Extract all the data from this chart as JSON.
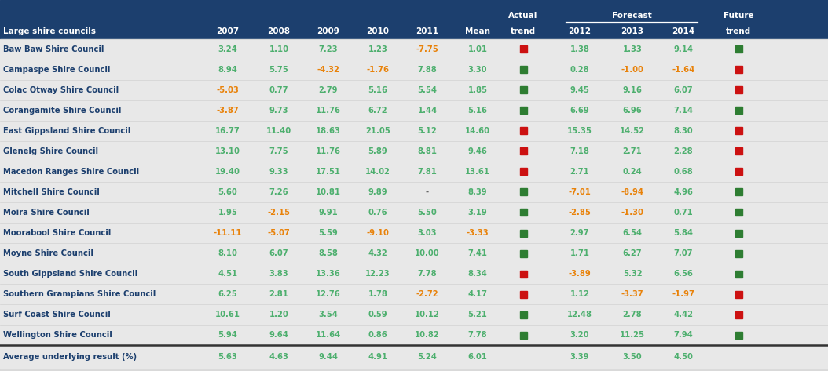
{
  "header_bg": "#1c3f6e",
  "header_fg": "#ffffff",
  "bg_color": "#d9d9d9",
  "row_bg": "#e8e8e8",
  "name_color": "#1c3f6e",
  "pos_color": "#4daf6e",
  "neg_color": "#e8820a",
  "avg_pos_color": "#4daf6e",
  "rows": [
    {
      "name": "Baw Baw Shire Council",
      "2007": "3.24",
      "2008": "1.10",
      "2009": "7.23",
      "2010": "1.23",
      "2011": "-7.75",
      "mean": "1.01",
      "actual_trend": "red",
      "2012": "1.38",
      "2013": "1.33",
      "2014": "9.14",
      "future_trend": "green"
    },
    {
      "name": "Campaspe Shire Council",
      "2007": "8.94",
      "2008": "5.75",
      "2009": "-4.32",
      "2010": "-1.76",
      "2011": "7.88",
      "mean": "3.30",
      "actual_trend": "green",
      "2012": "0.28",
      "2013": "-1.00",
      "2014": "-1.64",
      "future_trend": "red"
    },
    {
      "name": "Colac Otway Shire Council",
      "2007": "-5.03",
      "2008": "0.77",
      "2009": "2.79",
      "2010": "5.16",
      "2011": "5.54",
      "mean": "1.85",
      "actual_trend": "green",
      "2012": "9.45",
      "2013": "9.16",
      "2014": "6.07",
      "future_trend": "red"
    },
    {
      "name": "Corangamite Shire Council",
      "2007": "-3.87",
      "2008": "9.73",
      "2009": "11.76",
      "2010": "6.72",
      "2011": "1.44",
      "mean": "5.16",
      "actual_trend": "green",
      "2012": "6.69",
      "2013": "6.96",
      "2014": "7.14",
      "future_trend": "green"
    },
    {
      "name": "East Gippsland Shire Council",
      "2007": "16.77",
      "2008": "11.40",
      "2009": "18.63",
      "2010": "21.05",
      "2011": "5.12",
      "mean": "14.60",
      "actual_trend": "red",
      "2012": "15.35",
      "2013": "14.52",
      "2014": "8.30",
      "future_trend": "red"
    },
    {
      "name": "Glenelg Shire Council",
      "2007": "13.10",
      "2008": "7.75",
      "2009": "11.76",
      "2010": "5.89",
      "2011": "8.81",
      "mean": "9.46",
      "actual_trend": "red",
      "2012": "7.18",
      "2013": "2.71",
      "2014": "2.28",
      "future_trend": "red"
    },
    {
      "name": "Macedon Ranges Shire Council",
      "2007": "19.40",
      "2008": "9.33",
      "2009": "17.51",
      "2010": "14.02",
      "2011": "7.81",
      "mean": "13.61",
      "actual_trend": "red",
      "2012": "2.71",
      "2013": "0.24",
      "2014": "0.68",
      "future_trend": "red"
    },
    {
      "name": "Mitchell Shire Council",
      "2007": "5.60",
      "2008": "7.26",
      "2009": "10.81",
      "2010": "9.89",
      "2011": "-",
      "mean": "8.39",
      "actual_trend": "green",
      "2012": "-7.01",
      "2013": "-8.94",
      "2014": "4.96",
      "future_trend": "green"
    },
    {
      "name": "Moira Shire Council",
      "2007": "1.95",
      "2008": "-2.15",
      "2009": "9.91",
      "2010": "0.76",
      "2011": "5.50",
      "mean": "3.19",
      "actual_trend": "green",
      "2012": "-2.85",
      "2013": "-1.30",
      "2014": "0.71",
      "future_trend": "green"
    },
    {
      "name": "Moorabool Shire Council",
      "2007": "-11.11",
      "2008": "-5.07",
      "2009": "5.59",
      "2010": "-9.10",
      "2011": "3.03",
      "mean": "-3.33",
      "actual_trend": "green",
      "2012": "2.97",
      "2013": "6.54",
      "2014": "5.84",
      "future_trend": "green"
    },
    {
      "name": "Moyne Shire Council",
      "2007": "8.10",
      "2008": "6.07",
      "2009": "8.58",
      "2010": "4.32",
      "2011": "10.00",
      "mean": "7.41",
      "actual_trend": "green",
      "2012": "1.71",
      "2013": "6.27",
      "2014": "7.07",
      "future_trend": "green"
    },
    {
      "name": "South Gippsland Shire Council",
      "2007": "4.51",
      "2008": "3.83",
      "2009": "13.36",
      "2010": "12.23",
      "2011": "7.78",
      "mean": "8.34",
      "actual_trend": "red",
      "2012": "-3.89",
      "2013": "5.32",
      "2014": "6.56",
      "future_trend": "green"
    },
    {
      "name": "Southern Grampians Shire Council",
      "2007": "6.25",
      "2008": "2.81",
      "2009": "12.76",
      "2010": "1.78",
      "2011": "-2.72",
      "mean": "4.17",
      "actual_trend": "red",
      "2012": "1.12",
      "2013": "-3.37",
      "2014": "-1.97",
      "future_trend": "red"
    },
    {
      "name": "Surf Coast Shire Council",
      "2007": "10.61",
      "2008": "1.20",
      "2009": "3.54",
      "2010": "0.59",
      "2011": "10.12",
      "mean": "5.21",
      "actual_trend": "green",
      "2012": "12.48",
      "2013": "2.78",
      "2014": "4.42",
      "future_trend": "red"
    },
    {
      "name": "Wellington Shire Council",
      "2007": "5.94",
      "2008": "9.64",
      "2009": "11.64",
      "2010": "0.86",
      "2011": "10.82",
      "mean": "7.78",
      "actual_trend": "green",
      "2012": "3.20",
      "2013": "11.25",
      "2014": "7.94",
      "future_trend": "green"
    }
  ],
  "avg_row": {
    "name": "Average underlying result (%)",
    "2007": "5.63",
    "2008": "4.63",
    "2009": "9.44",
    "2010": "4.91",
    "2011": "5.24",
    "mean": "6.01",
    "2012": "3.39",
    "2013": "3.50",
    "2014": "4.50"
  }
}
